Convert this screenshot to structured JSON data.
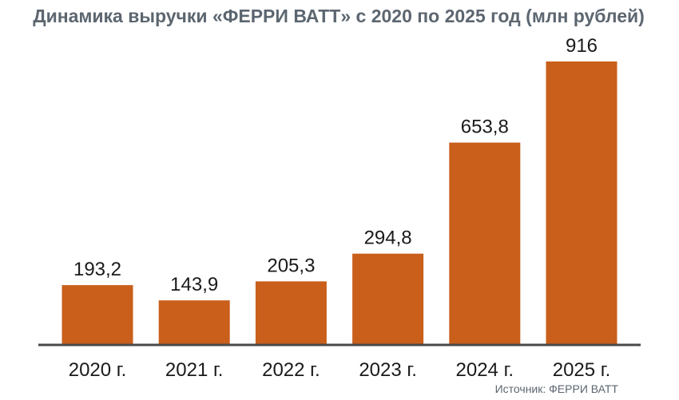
{
  "chart_data": {
    "type": "bar",
    "title": "Динамика выручки «ФЕРРИ ВАТТ» с 2020 по 2025 год (млн рублей)",
    "categories": [
      "2020 г.",
      "2021 г.",
      "2022 г.",
      "2023 г.",
      "2024 г.",
      "2025 г."
    ],
    "values": [
      193.2,
      143.9,
      205.3,
      294.8,
      653.8,
      916
    ],
    "value_labels": [
      "193,2",
      "143,9",
      "205,3",
      "294,8",
      "653,8",
      "916"
    ],
    "ylim": [
      0,
      916
    ],
    "grid": false,
    "legend": "none",
    "source": "Источник: ФЕРРИ ВАТТ",
    "colors": {
      "bar": "#c95f1b",
      "axis": "#4a4a4a",
      "title": "#5c6670"
    }
  }
}
